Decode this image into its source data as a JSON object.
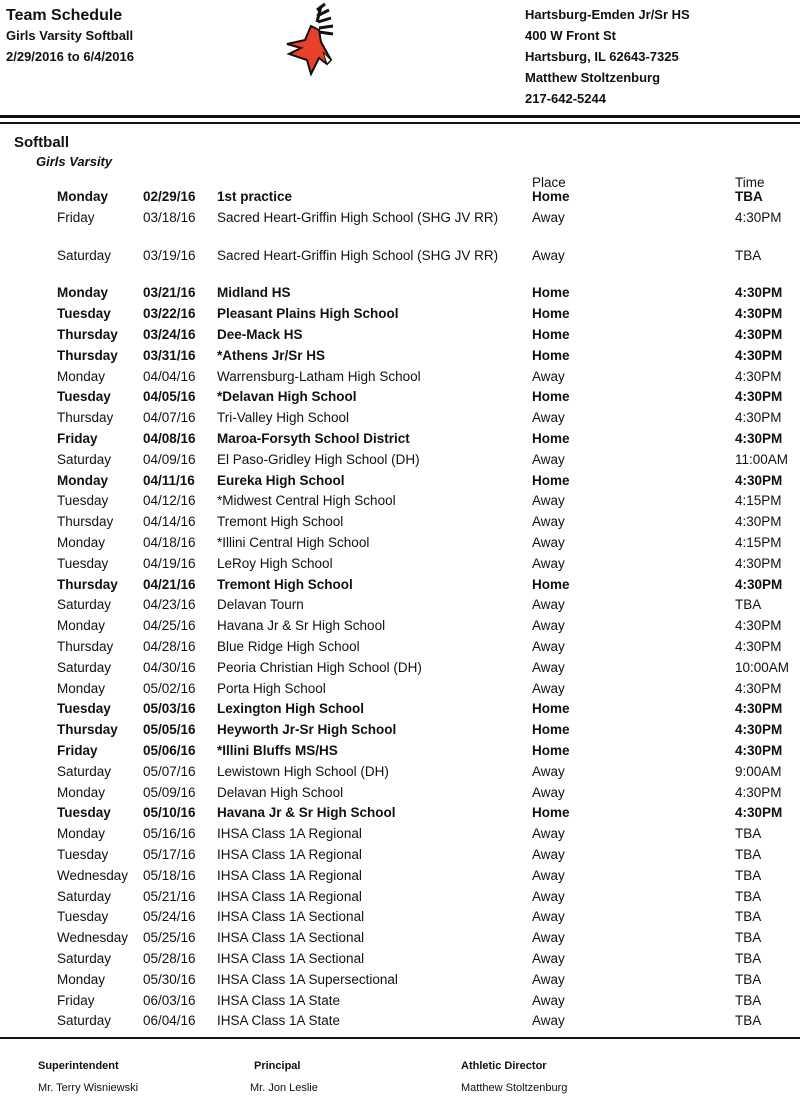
{
  "header": {
    "title": "Team Schedule",
    "subtitle": "Girls Varsity Softball",
    "date_range": "2/29/2016 to 6/4/2016",
    "school": "Hartsburg-Emden Jr/Sr HS",
    "address1": "400 W Front St",
    "address2": "Hartsburg, IL  62643-7325",
    "contact": "Matthew Stoltzenburg",
    "phone": "217-642-5244",
    "logo_icon": "deer-mascot-logo",
    "logo_color": "#e8402a"
  },
  "section": {
    "sport": "Softball",
    "level": "Girls Varsity",
    "place_header": "Place",
    "time_header": "Time"
  },
  "rows": [
    {
      "day": "Monday",
      "date": "02/29/16",
      "opponent": "1st practice",
      "place": "Home",
      "time": "TBA"
    },
    {
      "day": "Friday",
      "date": "03/18/16",
      "opponent": "Sacred Heart-Griffin High School (SHG JV RR)",
      "place": "Away",
      "time": "4:30PM"
    },
    {
      "day": "Saturday",
      "date": "03/19/16",
      "opponent": "Sacred Heart-Griffin High School (SHG JV RR)",
      "place": "Away",
      "time": "TBA"
    },
    {
      "day": "Monday",
      "date": "03/21/16",
      "opponent": "Midland HS",
      "place": "Home",
      "time": "4:30PM"
    },
    {
      "day": "Tuesday",
      "date": "03/22/16",
      "opponent": "Pleasant Plains High School",
      "place": "Home",
      "time": "4:30PM"
    },
    {
      "day": "Thursday",
      "date": "03/24/16",
      "opponent": "Dee-Mack HS",
      "place": "Home",
      "time": "4:30PM"
    },
    {
      "day": "Thursday",
      "date": "03/31/16",
      "opponent": "*Athens Jr/Sr HS",
      "place": "Home",
      "time": "4:30PM"
    },
    {
      "day": "Monday",
      "date": "04/04/16",
      "opponent": "Warrensburg-Latham High School",
      "place": "Away",
      "time": "4:30PM"
    },
    {
      "day": "Tuesday",
      "date": "04/05/16",
      "opponent": "*Delavan High School",
      "place": "Home",
      "time": "4:30PM"
    },
    {
      "day": "Thursday",
      "date": "04/07/16",
      "opponent": "Tri-Valley High School",
      "place": "Away",
      "time": "4:30PM"
    },
    {
      "day": "Friday",
      "date": "04/08/16",
      "opponent": "Maroa-Forsyth School District",
      "place": "Home",
      "time": "4:30PM"
    },
    {
      "day": "Saturday",
      "date": "04/09/16",
      "opponent": "El Paso-Gridley High School (DH)",
      "place": "Away",
      "time": "11:00AM"
    },
    {
      "day": "Monday",
      "date": "04/11/16",
      "opponent": "Eureka High School",
      "place": "Home",
      "time": "4:30PM"
    },
    {
      "day": "Tuesday",
      "date": "04/12/16",
      "opponent": "*Midwest Central High School",
      "place": "Away",
      "time": "4:15PM"
    },
    {
      "day": "Thursday",
      "date": "04/14/16",
      "opponent": "Tremont High School",
      "place": "Away",
      "time": "4:30PM"
    },
    {
      "day": "Monday",
      "date": "04/18/16",
      "opponent": "*Illini Central High School",
      "place": "Away",
      "time": "4:15PM"
    },
    {
      "day": "Tuesday",
      "date": "04/19/16",
      "opponent": "LeRoy High School",
      "place": "Away",
      "time": "4:30PM"
    },
    {
      "day": "Thursday",
      "date": "04/21/16",
      "opponent": "Tremont High School",
      "place": "Home",
      "time": "4:30PM"
    },
    {
      "day": "Saturday",
      "date": "04/23/16",
      "opponent": "Delavan Tourn",
      "place": "Away",
      "time": "TBA"
    },
    {
      "day": "Monday",
      "date": "04/25/16",
      "opponent": "Havana Jr & Sr High School",
      "place": "Away",
      "time": "4:30PM"
    },
    {
      "day": "Thursday",
      "date": "04/28/16",
      "opponent": "Blue Ridge High School",
      "place": "Away",
      "time": "4:30PM"
    },
    {
      "day": "Saturday",
      "date": "04/30/16",
      "opponent": "Peoria Christian High School (DH)",
      "place": "Away",
      "time": "10:00AM"
    },
    {
      "day": "Monday",
      "date": "05/02/16",
      "opponent": "Porta High School",
      "place": "Away",
      "time": "4:30PM"
    },
    {
      "day": "Tuesday",
      "date": "05/03/16",
      "opponent": "Lexington High School",
      "place": "Home",
      "time": "4:30PM"
    },
    {
      "day": "Thursday",
      "date": "05/05/16",
      "opponent": "Heyworth Jr-Sr High School",
      "place": "Home",
      "time": "4:30PM"
    },
    {
      "day": "Friday",
      "date": "05/06/16",
      "opponent": "*Illini Bluffs MS/HS",
      "place": "Home",
      "time": "4:30PM"
    },
    {
      "day": "Saturday",
      "date": "05/07/16",
      "opponent": "Lewistown High School (DH)",
      "place": "Away",
      "time": "9:00AM"
    },
    {
      "day": "Monday",
      "date": "05/09/16",
      "opponent": "Delavan High School",
      "place": "Away",
      "time": "4:30PM"
    },
    {
      "day": "Tuesday",
      "date": "05/10/16",
      "opponent": "Havana Jr & Sr High School",
      "place": "Home",
      "time": "4:30PM"
    },
    {
      "day": "Monday",
      "date": "05/16/16",
      "opponent": "IHSA Class 1A Regional",
      "place": "Away",
      "time": "TBA"
    },
    {
      "day": "Tuesday",
      "date": "05/17/16",
      "opponent": "IHSA Class 1A Regional",
      "place": "Away",
      "time": "TBA"
    },
    {
      "day": "Wednesday",
      "date": "05/18/16",
      "opponent": "IHSA Class 1A Regional",
      "place": "Away",
      "time": "TBA"
    },
    {
      "day": "Saturday",
      "date": "05/21/16",
      "opponent": "IHSA Class 1A Regional",
      "place": "Away",
      "time": "TBA"
    },
    {
      "day": "Tuesday",
      "date": "05/24/16",
      "opponent": "IHSA Class 1A Sectional",
      "place": "Away",
      "time": "TBA"
    },
    {
      "day": "Wednesday",
      "date": "05/25/16",
      "opponent": "IHSA Class 1A Sectional",
      "place": "Away",
      "time": "TBA"
    },
    {
      "day": "Saturday",
      "date": "05/28/16",
      "opponent": "IHSA Class 1A Sectional",
      "place": "Away",
      "time": "TBA"
    },
    {
      "day": "Monday",
      "date": "05/30/16",
      "opponent": "IHSA Class 1A Supersectional",
      "place": "Away",
      "time": "TBA"
    },
    {
      "day": "Friday",
      "date": "06/03/16",
      "opponent": "IHSA Class 1A State",
      "place": "Away",
      "time": "TBA"
    },
    {
      "day": "Saturday",
      "date": "06/04/16",
      "opponent": "IHSA Class 1A State",
      "place": "Away",
      "time": "TBA"
    }
  ],
  "footer": {
    "superintendent_label": "Superintendent",
    "superintendent": "Mr. Terry Wisniewski",
    "principal_label": "Principal",
    "principal": "Mr. Jon Leslie",
    "ad_label": "Athletic Director",
    "ad": "Matthew Stoltzenburg"
  }
}
